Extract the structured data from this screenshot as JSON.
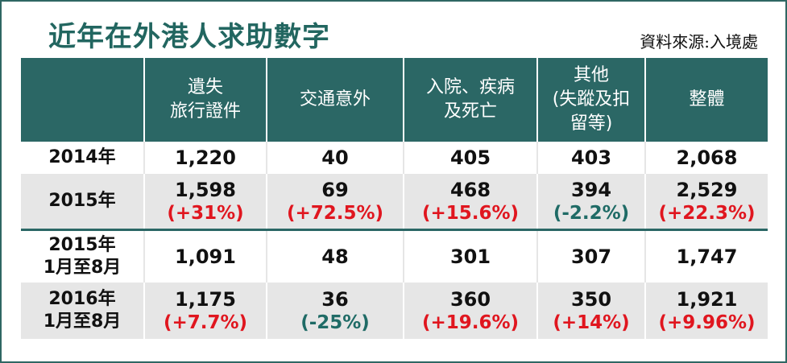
{
  "title": "近年在外港人求助數字",
  "source": "資料來源:入境處",
  "colors": {
    "header_bg": "#2b6765",
    "title": "#226660",
    "increase": "#e0161f",
    "decrease": "#1f6b66",
    "shade": "#e6e6e6"
  },
  "headers": [
    "",
    "遺失\n旅行證件",
    "交通意外",
    "入院、疾病\n及死亡",
    "其他\n(失蹤及扣\n留等)",
    "整體"
  ],
  "rows": [
    {
      "label": "2014年",
      "values": [
        "1,220",
        "40",
        "405",
        "403",
        "2,068"
      ],
      "changes": [
        "",
        "",
        "",
        "",
        ""
      ]
    },
    {
      "label": "2015年",
      "values": [
        "1,598",
        "69",
        "468",
        "394",
        "2,529"
      ],
      "changes": [
        "(+31%)",
        "(+72.5%)",
        "(+15.6%)",
        "(-2.2%)",
        "(+22.3%)"
      ]
    },
    {
      "label": "2015年\n1月至8月",
      "values": [
        "1,091",
        "48",
        "301",
        "307",
        "1,747"
      ],
      "changes": [
        "",
        "",
        "",
        "",
        ""
      ]
    },
    {
      "label": "2016年\n1月至8月",
      "values": [
        "1,175",
        "36",
        "360",
        "350",
        "1,921"
      ],
      "changes": [
        "(+7.7%)",
        "(-25%)",
        "(+19.6%)",
        "(+14%)",
        "(+9.96%)"
      ]
    }
  ]
}
